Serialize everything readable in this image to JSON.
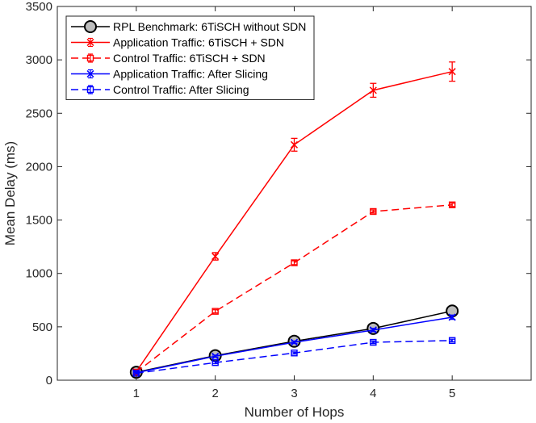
{
  "chart_data": {
    "type": "line",
    "title": "",
    "xlabel": "Number of Hops",
    "ylabel": "Mean Delay (ms)",
    "xlim": [
      0,
      6
    ],
    "ylim": [
      0,
      3500
    ],
    "xticks": [
      1,
      2,
      3,
      4,
      5
    ],
    "yticks": [
      0,
      500,
      1000,
      1500,
      2000,
      2500,
      3000,
      3500
    ],
    "x": [
      1,
      2,
      3,
      4,
      5
    ],
    "legend_position": "top-left",
    "series": [
      {
        "name": "RPL Benchmark: 6TiSCH without SDN",
        "color": "#000000",
        "dash": "solid",
        "marker": "circle",
        "values": [
          75,
          230,
          365,
          485,
          648
        ],
        "errors": [
          10,
          10,
          12,
          12,
          15
        ]
      },
      {
        "name": "Application Traffic: 6TiSCH + SDN",
        "color": "#ff0000",
        "dash": "solid",
        "marker": "x",
        "values": [
          80,
          1160,
          2205,
          2715,
          2890
        ],
        "errors": [
          10,
          35,
          60,
          65,
          90
        ]
      },
      {
        "name": "Control Traffic: 6TiSCH + SDN",
        "color": "#ff0000",
        "dash": "dashed",
        "marker": "square",
        "values": [
          75,
          645,
          1100,
          1580,
          1642
        ],
        "errors": [
          10,
          15,
          18,
          15,
          15
        ]
      },
      {
        "name": "Application Traffic: After Slicing",
        "color": "#0000ff",
        "dash": "solid",
        "marker": "x",
        "values": [
          70,
          225,
          355,
          470,
          590
        ],
        "errors": [
          10,
          10,
          12,
          15,
          20
        ]
      },
      {
        "name": "Control Traffic: After Slicing",
        "color": "#0000ff",
        "dash": "dashed",
        "marker": "square",
        "values": [
          65,
          165,
          255,
          355,
          372
        ],
        "errors": [
          8,
          10,
          10,
          12,
          12
        ]
      }
    ]
  }
}
